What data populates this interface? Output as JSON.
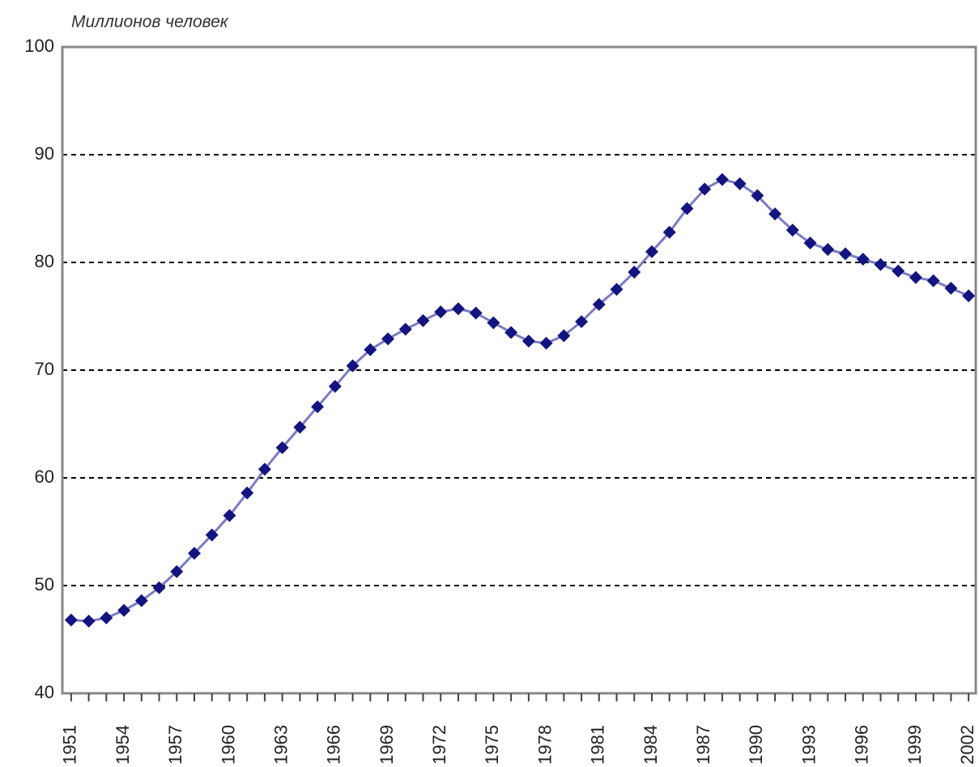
{
  "chart_data": {
    "type": "line",
    "title": "Миллионов человек",
    "categories": [
      "1951",
      null,
      null,
      "1954",
      null,
      null,
      "1957",
      null,
      null,
      "1960",
      null,
      null,
      "1963",
      null,
      null,
      "1966",
      null,
      null,
      "1969",
      null,
      null,
      "1972",
      null,
      null,
      "1975",
      null,
      null,
      "1978",
      null,
      null,
      "1981",
      null,
      null,
      "1984",
      null,
      null,
      "1987",
      null,
      null,
      "1990",
      null,
      null,
      "1993",
      null,
      null,
      "1996",
      null,
      null,
      "1999",
      null,
      null,
      "2002"
    ],
    "values": [
      46.8,
      46.7,
      47.0,
      47.7,
      48.6,
      49.8,
      51.3,
      53.0,
      54.7,
      56.5,
      58.6,
      60.8,
      62.8,
      64.7,
      66.6,
      68.5,
      70.4,
      71.9,
      72.9,
      73.8,
      74.6,
      75.4,
      75.7,
      75.3,
      74.4,
      73.5,
      72.7,
      72.5,
      73.2,
      74.5,
      76.1,
      77.5,
      79.1,
      81.0,
      82.8,
      85.0,
      86.8,
      87.7,
      87.3,
      86.2,
      84.5,
      83.0,
      81.8,
      81.2,
      80.8,
      80.3,
      79.8,
      79.2,
      78.6,
      78.3,
      77.6,
      76.9
    ],
    "color": "#7b7bc4",
    "marker_color": "#141480",
    "ylim": [
      40,
      100
    ],
    "yticks": [
      40,
      50,
      60,
      70,
      80,
      90,
      100
    ],
    "grid": true
  }
}
